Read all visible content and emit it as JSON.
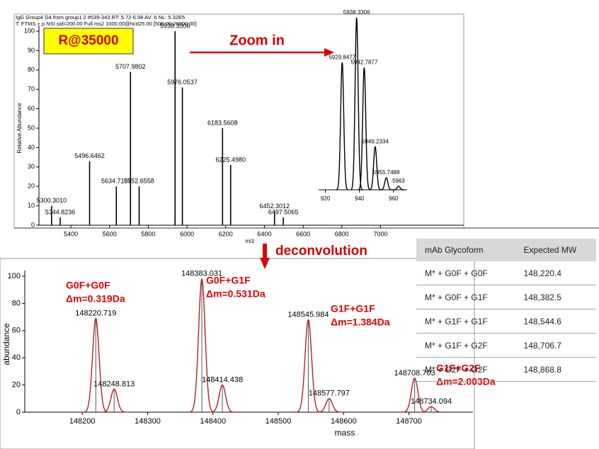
{
  "annotations": {
    "resolution": "R@35000",
    "zoom": "Zoom in",
    "deconvolution": "deconvolution"
  },
  "chart_data": [
    {
      "type": "spectrum",
      "header": [
        "IgG Group4 D4 from group1 2 #539-343 RT: 5.72-6.98 AV: 6 NL: 5.32E5",
        "T: FTMS + p NSI sid=200.00 Full ms2 1000.00@hcd25.00 [500.00-20000.00]"
      ],
      "ylabel": "Relative Abundance",
      "xlabel": "m/z",
      "x": [
        5300.301,
        5344.8236,
        5496.6462,
        5634.7109,
        5707.9802,
        5752.6558,
        5938.3306,
        5976.0537,
        6183.5608,
        6225.498,
        6452.3012,
        6497.5065
      ],
      "x_labels": [
        "5300.3010",
        "5344.8236",
        "5496.6462",
        "5634.7109",
        "5707.9802",
        "5752.6558",
        "5938.3306",
        "5976.0537",
        "6183.5608",
        "6225.4980",
        "6452.3012",
        "6497.5065"
      ],
      "values": [
        10,
        4,
        33,
        20,
        79,
        20,
        100,
        71,
        50,
        31,
        7,
        4
      ],
      "color": "#000000",
      "xlim": [
        5235,
        7430
      ],
      "ylim": [
        0,
        100
      ],
      "xticks": [
        5400,
        5600,
        5800,
        6000,
        6200,
        6400,
        6600,
        6800,
        7000
      ],
      "yticks": [
        0,
        10,
        20,
        30,
        40,
        50,
        60,
        70,
        80,
        90,
        100
      ]
    },
    {
      "type": "profile",
      "x": [
        5929.8477,
        5938.3306,
        5942.7877,
        5949.2334,
        5955.7488,
        5963
      ],
      "values": [
        74,
        100,
        71,
        25,
        7,
        2
      ],
      "color": "#000000",
      "xlim": [
        5916,
        5968
      ],
      "ylim": [
        0,
        100
      ],
      "xticks": [
        {
          "value": 5920,
          "label": "920"
        },
        {
          "value": 5940,
          "label": "940"
        },
        {
          "value": 5960,
          "label": "960"
        }
      ]
    },
    {
      "type": "profile",
      "ylabel": "abundance",
      "xlabel": "mass",
      "x": [
        148220.719,
        148248.813,
        148383.031,
        148414.438,
        148545.984,
        148577.797,
        148708.703,
        148734.094
      ],
      "values": [
        69,
        17,
        98,
        20,
        68,
        10,
        25,
        4
      ],
      "color": "#b22222",
      "stick_color": "#555555",
      "xlim": [
        148112,
        148798
      ],
      "ylim": [
        0,
        100
      ],
      "xticks": [
        148200,
        148300,
        148400,
        148500,
        148600,
        148700
      ],
      "yticks": [
        0,
        20,
        40,
        60,
        80,
        100
      ],
      "annotations": [
        [
          "G0F+G0F",
          "Δm=0.319Da"
        ],
        [
          "G0F+G1F",
          "Δm=0.531Da"
        ],
        [
          "G1F+G1F",
          "Δm=1.384Da"
        ],
        [
          "G1F+G2F",
          "Δm=2.003Da"
        ]
      ]
    }
  ],
  "table": {
    "header": [
      "mAb Glycoform",
      "Expected MW"
    ],
    "rows": [
      [
        "M* + G0F + G0F",
        "148,220.4"
      ],
      [
        "M* + G0F + G1F",
        "148,382.5"
      ],
      [
        "M* + G1F + G1F",
        "148,544.6"
      ],
      [
        "M* + G1F + G2F",
        "148,706.7"
      ],
      [
        "M* + G2F + G2F",
        "148,868.8"
      ]
    ]
  }
}
